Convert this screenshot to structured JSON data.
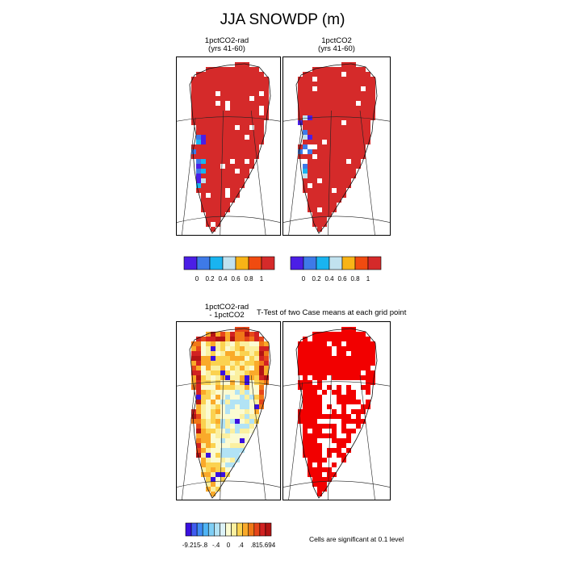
{
  "figure": {
    "title": "JJA SNOWDP (m)"
  },
  "panels": {
    "top_left": {
      "title_line1": "1pctCO2-rad",
      "title_line2": "(yrs 41-60)"
    },
    "top_right": {
      "title_line1": "1pctCO2",
      "title_line2": "(yrs 41-60)"
    },
    "bottom_left": {
      "title_line1": "1pctCO2-rad",
      "title_line2": "- 1pctCO2"
    },
    "bottom_right": {
      "title": "T-Test of two Case means at each grid point"
    }
  },
  "colorbars": {
    "top": {
      "colors": [
        "#4b1ee6",
        "#3e7ae8",
        "#19b4f0",
        "#c1e2ef",
        "#f8b417",
        "#f04b10",
        "#d52a2a"
      ],
      "labels": [
        "0",
        "0.2",
        "0.4",
        "0.6",
        "0.8",
        "1"
      ]
    },
    "bottom": {
      "colors": [
        "#3a10e0",
        "#3f5cf0",
        "#3f8cf5",
        "#4fb4f5",
        "#7ecef5",
        "#b2e3f5",
        "#dcf2f7",
        "#fbfbd2",
        "#fbf0a0",
        "#fbd250",
        "#faaa2a",
        "#f07818",
        "#e6461a",
        "#d22222",
        "#b41414"
      ],
      "labels": [
        "-9.215",
        "-.8",
        "-.4",
        "0",
        ".4",
        ".8",
        "15.694"
      ]
    }
  },
  "footer": {
    "significance_note": "Cells are significant at 0.1 level"
  },
  "chart_data": [
    {
      "type": "heatmap",
      "title": "1pctCO2-rad (yrs 41-60)",
      "variable": "JJA SNOWDP (m)",
      "scale_range": [
        0,
        1
      ],
      "note": "Nearly all of Greenland at the top color (≥1); a few lower values along the west coast"
    },
    {
      "type": "heatmap",
      "title": "1pctCO2 (yrs 41-60)",
      "variable": "JJA SNOWDP (m)",
      "scale_range": [
        0,
        1
      ],
      "note": "Nearly all of Greenland at the top color (≥1); a few lower values along the west coast"
    },
    {
      "type": "heatmap",
      "title": "1pctCO2-rad - 1pctCO2",
      "scale_range": [
        -9.215,
        15.694
      ],
      "note": "Positive differences around margins, near zero in interior"
    },
    {
      "type": "heatmap",
      "title": "T-Test of two Case means at each grid point",
      "note": "Cells are significant at 0.1 level"
    }
  ]
}
